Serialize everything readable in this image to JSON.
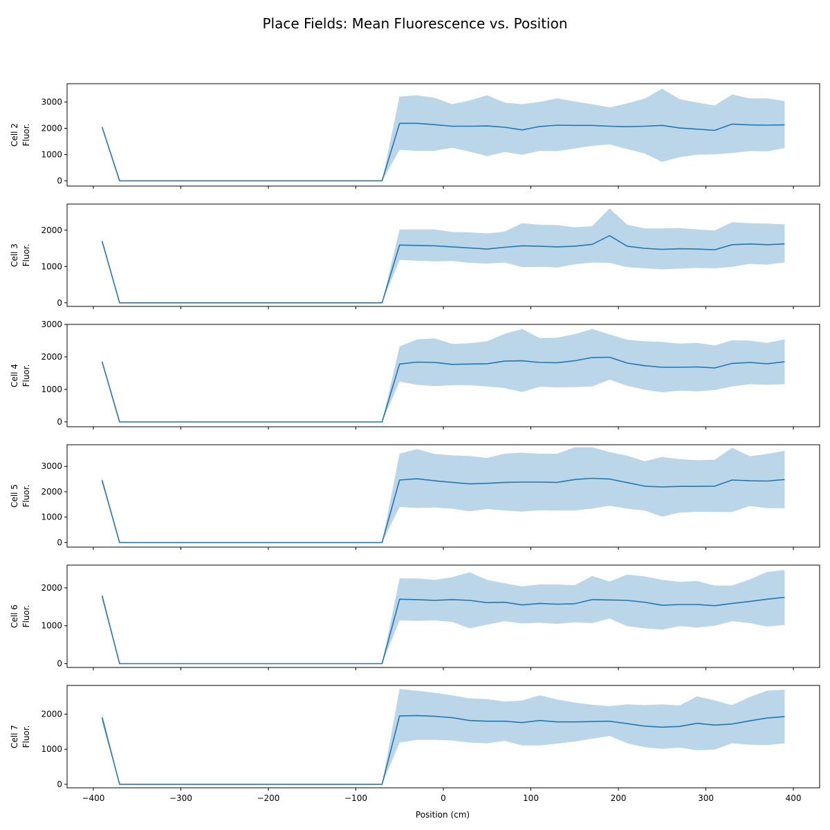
{
  "figure": {
    "title": "Place Fields: Mean Fluorescence vs. Position",
    "xlabel": "Position (cm)"
  },
  "colors": {
    "line": "#1f77b4",
    "band": "#1f77b4",
    "band_opacity": 0.3
  },
  "chart_data": {
    "type": "line",
    "x": [
      -390,
      -370,
      -350,
      -330,
      -310,
      -290,
      -270,
      -250,
      -230,
      -210,
      -190,
      -170,
      -150,
      -130,
      -110,
      -90,
      -70,
      -50,
      -30,
      -10,
      10,
      30,
      50,
      70,
      90,
      110,
      130,
      150,
      170,
      190,
      210,
      230,
      250,
      270,
      290,
      310,
      330,
      350,
      370,
      390
    ],
    "xlim": [
      -430,
      430
    ],
    "xticks": [
      -400,
      -300,
      -200,
      -100,
      0,
      100,
      200,
      300,
      400
    ],
    "xlabel": "Position (cm)",
    "panels": [
      {
        "ylabel_line1": "Cell 2",
        "ylabel_line2": "Fluor.",
        "ylim": [
          -200,
          3700
        ],
        "yticks": [
          0,
          1000,
          2000,
          3000
        ],
        "mean": [
          2050,
          0,
          0,
          0,
          0,
          0,
          0,
          0,
          0,
          0,
          0,
          0,
          0,
          0,
          0,
          0,
          0,
          2190,
          2190,
          2140,
          2080,
          2080,
          2090,
          2040,
          1940,
          2070,
          2120,
          2110,
          2110,
          2080,
          2060,
          2080,
          2110,
          2010,
          1970,
          1920,
          2160,
          2130,
          2120,
          2130
        ],
        "upper": [
          2100,
          0,
          0,
          0,
          0,
          0,
          0,
          0,
          0,
          0,
          0,
          0,
          0,
          0,
          0,
          0,
          0,
          3210,
          3260,
          3160,
          2920,
          3060,
          3260,
          2980,
          2920,
          3010,
          3140,
          3020,
          2920,
          2800,
          2950,
          3130,
          3510,
          3110,
          2980,
          2870,
          3290,
          3140,
          3140,
          3040
        ],
        "lower": [
          2000,
          0,
          0,
          0,
          0,
          0,
          0,
          0,
          0,
          0,
          0,
          0,
          0,
          0,
          0,
          0,
          0,
          1180,
          1140,
          1140,
          1260,
          1110,
          940,
          1100,
          990,
          1140,
          1130,
          1230,
          1330,
          1390,
          1210,
          1040,
          720,
          900,
          990,
          1010,
          1060,
          1130,
          1120,
          1250
        ]
      },
      {
        "ylabel_line1": "Cell 3",
        "ylabel_line2": "Fluor.",
        "ylim": [
          -100,
          2720
        ],
        "yticks": [
          0,
          1000,
          2000
        ],
        "mean": [
          1700,
          0,
          0,
          0,
          0,
          0,
          0,
          0,
          0,
          0,
          0,
          0,
          0,
          0,
          0,
          0,
          0,
          1590,
          1580,
          1570,
          1540,
          1510,
          1480,
          1530,
          1570,
          1560,
          1540,
          1560,
          1610,
          1850,
          1560,
          1500,
          1470,
          1490,
          1480,
          1460,
          1600,
          1620,
          1600,
          1620
        ],
        "upper": [
          1750,
          0,
          0,
          0,
          0,
          0,
          0,
          0,
          0,
          0,
          0,
          0,
          0,
          0,
          0,
          0,
          0,
          2020,
          2020,
          2020,
          1950,
          1940,
          1910,
          1960,
          2190,
          2150,
          2140,
          2080,
          2110,
          2600,
          2150,
          2050,
          2050,
          2060,
          2020,
          1990,
          2220,
          2190,
          2180,
          2160
        ],
        "lower": [
          1650,
          0,
          0,
          0,
          0,
          0,
          0,
          0,
          0,
          0,
          0,
          0,
          0,
          0,
          0,
          0,
          0,
          1180,
          1160,
          1140,
          1150,
          1100,
          1080,
          1110,
          980,
          990,
          970,
          1060,
          1110,
          1100,
          980,
          950,
          920,
          940,
          960,
          950,
          990,
          1070,
          1050,
          1110
        ]
      },
      {
        "ylabel_line1": "Cell 4",
        "ylabel_line2": "Fluor.",
        "ylim": [
          -150,
          3000
        ],
        "yticks": [
          0,
          1000,
          2000,
          3000
        ],
        "mean": [
          1850,
          0,
          0,
          0,
          0,
          0,
          0,
          0,
          0,
          0,
          0,
          0,
          0,
          0,
          0,
          0,
          0,
          1780,
          1840,
          1830,
          1770,
          1780,
          1790,
          1870,
          1880,
          1830,
          1820,
          1880,
          1980,
          1990,
          1810,
          1730,
          1680,
          1680,
          1690,
          1660,
          1800,
          1830,
          1790,
          1850
        ],
        "upper": [
          1900,
          0,
          0,
          0,
          0,
          0,
          0,
          0,
          0,
          0,
          0,
          0,
          0,
          0,
          0,
          0,
          0,
          2320,
          2540,
          2570,
          2400,
          2420,
          2480,
          2710,
          2860,
          2580,
          2590,
          2700,
          2860,
          2690,
          2530,
          2480,
          2460,
          2410,
          2430,
          2350,
          2510,
          2500,
          2430,
          2540
        ],
        "lower": [
          1800,
          0,
          0,
          0,
          0,
          0,
          0,
          0,
          0,
          0,
          0,
          0,
          0,
          0,
          0,
          0,
          0,
          1240,
          1140,
          1100,
          1130,
          1130,
          1090,
          1040,
          920,
          1080,
          1060,
          1070,
          1090,
          1300,
          1110,
          990,
          910,
          960,
          940,
          980,
          1090,
          1160,
          1140,
          1160
        ]
      },
      {
        "ylabel_line1": "Cell 5",
        "ylabel_line2": "Fluor.",
        "ylim": [
          -180,
          3850
        ],
        "yticks": [
          0,
          1000,
          2000,
          3000
        ],
        "mean": [
          2450,
          0,
          0,
          0,
          0,
          0,
          0,
          0,
          0,
          0,
          0,
          0,
          0,
          0,
          0,
          0,
          0,
          2460,
          2510,
          2430,
          2370,
          2310,
          2330,
          2370,
          2380,
          2380,
          2370,
          2480,
          2530,
          2500,
          2360,
          2220,
          2190,
          2210,
          2210,
          2220,
          2460,
          2430,
          2420,
          2480
        ],
        "upper": [
          2560,
          0,
          0,
          0,
          0,
          0,
          0,
          0,
          0,
          0,
          0,
          0,
          0,
          0,
          0,
          0,
          0,
          3500,
          3680,
          3490,
          3430,
          3410,
          3330,
          3500,
          3540,
          3500,
          3500,
          3750,
          3750,
          3560,
          3420,
          3200,
          3370,
          3280,
          3240,
          3260,
          3730,
          3400,
          3490,
          3610
        ],
        "lower": [
          2340,
          0,
          0,
          0,
          0,
          0,
          0,
          0,
          0,
          0,
          0,
          0,
          0,
          0,
          0,
          0,
          0,
          1400,
          1360,
          1380,
          1330,
          1230,
          1320,
          1260,
          1220,
          1270,
          1260,
          1260,
          1340,
          1450,
          1330,
          1260,
          1020,
          1180,
          1210,
          1200,
          1200,
          1440,
          1350,
          1350
        ]
      },
      {
        "ylabel_line1": "Cell 6",
        "ylabel_line2": "Fluor.",
        "ylim": [
          -100,
          2600
        ],
        "yticks": [
          0,
          1000,
          2000
        ],
        "mean": [
          1790,
          0,
          0,
          0,
          0,
          0,
          0,
          0,
          0,
          0,
          0,
          0,
          0,
          0,
          0,
          0,
          0,
          1700,
          1690,
          1670,
          1690,
          1670,
          1610,
          1620,
          1550,
          1590,
          1570,
          1580,
          1690,
          1680,
          1670,
          1620,
          1540,
          1560,
          1560,
          1530,
          1590,
          1640,
          1700,
          1750
        ],
        "upper": [
          1880,
          0,
          0,
          0,
          0,
          0,
          0,
          0,
          0,
          0,
          0,
          0,
          0,
          0,
          0,
          0,
          0,
          2250,
          2250,
          2210,
          2280,
          2410,
          2210,
          2120,
          2040,
          2090,
          2090,
          2070,
          2310,
          2170,
          2350,
          2300,
          2210,
          2160,
          2180,
          2060,
          2060,
          2220,
          2420,
          2470
        ],
        "lower": [
          1700,
          0,
          0,
          0,
          0,
          0,
          0,
          0,
          0,
          0,
          0,
          0,
          0,
          0,
          0,
          0,
          0,
          1140,
          1130,
          1140,
          1100,
          930,
          1030,
          1120,
          1060,
          1080,
          1050,
          1090,
          1070,
          1190,
          990,
          930,
          900,
          990,
          950,
          1000,
          1120,
          1070,
          980,
          1020
        ]
      },
      {
        "ylabel_line1": "Cell 7",
        "ylabel_line2": "Fluor.",
        "ylim": [
          -100,
          2820
        ],
        "yticks": [
          0,
          1000,
          2000
        ],
        "mean": [
          1900,
          0,
          0,
          0,
          0,
          0,
          0,
          0,
          0,
          0,
          0,
          0,
          0,
          0,
          0,
          0,
          0,
          1950,
          1960,
          1940,
          1900,
          1820,
          1800,
          1800,
          1760,
          1820,
          1780,
          1780,
          1790,
          1800,
          1730,
          1660,
          1630,
          1650,
          1740,
          1690,
          1720,
          1810,
          1890,
          1930
        ],
        "upper": [
          2040,
          0,
          0,
          0,
          0,
          0,
          0,
          0,
          0,
          0,
          0,
          0,
          0,
          0,
          0,
          0,
          0,
          2720,
          2670,
          2610,
          2540,
          2450,
          2430,
          2360,
          2390,
          2540,
          2420,
          2330,
          2270,
          2230,
          2280,
          2260,
          2280,
          2250,
          2510,
          2390,
          2260,
          2490,
          2670,
          2700
        ],
        "lower": [
          1760,
          0,
          0,
          0,
          0,
          0,
          0,
          0,
          0,
          0,
          0,
          0,
          0,
          0,
          0,
          0,
          0,
          1190,
          1270,
          1270,
          1250,
          1190,
          1170,
          1240,
          1110,
          1110,
          1160,
          1220,
          1300,
          1380,
          1170,
          1060,
          1010,
          1050,
          970,
          990,
          1170,
          1130,
          1120,
          1170
        ]
      }
    ]
  }
}
